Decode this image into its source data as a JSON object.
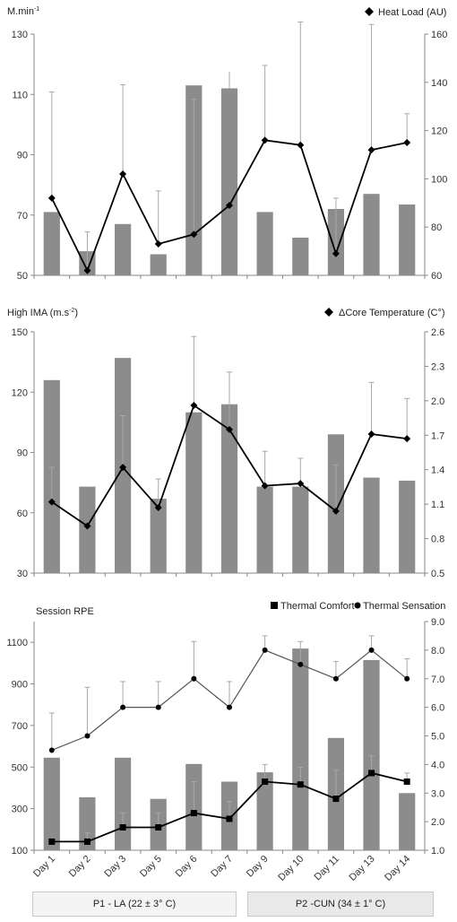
{
  "chart_data": [
    {
      "type": "bar+line",
      "ylabel": "M.min",
      "ylabel_sup": "-1",
      "y2label": "Heat Load (AU)",
      "ylim": [
        50,
        130
      ],
      "yticks": [
        50,
        70,
        90,
        110,
        130
      ],
      "y2lim": [
        60,
        160
      ],
      "y2ticks": [
        60,
        80,
        100,
        120,
        140,
        160
      ],
      "categories": [
        "Day 1",
        "Day 2",
        "Day 3",
        "Day 5",
        "Day 6",
        "Day 7",
        "Day 9",
        "Day 10",
        "Day 11",
        "Day 13",
        "Day 14"
      ],
      "series": [
        {
          "kind": "bar",
          "axis": "left",
          "values": [
            71,
            58,
            67,
            57,
            113,
            112,
            71,
            62.5,
            72,
            77,
            73.5
          ],
          "error": [
            0,
            0,
            0,
            0,
            0,
            5.5,
            0,
            0,
            0,
            0,
            0
          ]
        },
        {
          "kind": "line",
          "axis": "right",
          "marker": "diamond",
          "name": "Heat Load (AU)",
          "values": [
            92,
            62,
            102,
            73,
            77,
            89,
            116,
            114,
            69,
            112,
            115
          ],
          "error": [
            44,
            16,
            37,
            22,
            56,
            0,
            31,
            51,
            23,
            52,
            12
          ]
        }
      ]
    },
    {
      "type": "bar+line",
      "ylabel": "High IMA (m.s",
      "ylabel_sup": "-2",
      "ylabel_end": ")",
      "y2label": "ΔCore Temperature (C°)",
      "ylim": [
        30,
        150
      ],
      "yticks": [
        30,
        60,
        90,
        120,
        150
      ],
      "y2lim": [
        0.5,
        2.6
      ],
      "y2ticks": [
        "0.5",
        "0.8",
        "1.1",
        "1.4",
        "1.7",
        "2.0",
        "2.3",
        "2.6"
      ],
      "categories": [
        "Day 1",
        "Day 2",
        "Day 3",
        "Day 5",
        "Day 6",
        "Day 7",
        "Day 9",
        "Day 10",
        "Day 11",
        "Day 13",
        "Day 14"
      ],
      "series": [
        {
          "kind": "bar",
          "axis": "left",
          "values": [
            126,
            73,
            137,
            67,
            110,
            114,
            73,
            73,
            99,
            77.5,
            76
          ],
          "error": [
            0,
            0,
            0,
            0,
            0,
            0,
            0,
            0,
            0,
            0,
            0
          ]
        },
        {
          "kind": "line",
          "axis": "right",
          "marker": "diamond",
          "name": "ΔCore Temperature (C°)",
          "values": [
            1.12,
            0.91,
            1.42,
            1.07,
            1.96,
            1.75,
            1.26,
            1.28,
            1.04,
            1.71,
            1.67
          ],
          "error": [
            0.3,
            0,
            0.45,
            0.25,
            0.6,
            0.5,
            0.3,
            0.22,
            0.4,
            0.45,
            0.35
          ]
        }
      ]
    },
    {
      "type": "bar+line",
      "ylabel": "Session RPE",
      "ylim": [
        100,
        1200
      ],
      "yticks": [
        100,
        300,
        500,
        700,
        900,
        1100
      ],
      "y2lim": [
        1.0,
        9.0
      ],
      "y2ticks": [
        "1.0",
        "2.0",
        "3.0",
        "4.0",
        "5.0",
        "6.0",
        "7.0",
        "8.0",
        "9.0"
      ],
      "categories": [
        "Day 1",
        "Day 2",
        "Day 3",
        "Day 5",
        "Day 6",
        "Day 7",
        "Day 9",
        "Day 10",
        "Day 11",
        "Day 13",
        "Day 14"
      ],
      "series": [
        {
          "kind": "bar",
          "axis": "left",
          "values": [
            545,
            355,
            545,
            347,
            515,
            430,
            475,
            1070,
            640,
            1015,
            375
          ],
          "error": [
            0,
            0,
            0,
            0,
            0,
            0,
            0,
            0,
            0,
            0,
            0
          ]
        },
        {
          "kind": "line",
          "axis": "right",
          "marker": "square",
          "name": "Thermal Comfort",
          "values": [
            1.3,
            1.3,
            1.8,
            1.8,
            2.3,
            2.1,
            3.4,
            3.3,
            2.8,
            3.7,
            3.4
          ],
          "error": [
            0,
            0.3,
            0.5,
            0.5,
            1.1,
            0.6,
            0.6,
            0.6,
            1.0,
            0.6,
            0.3
          ]
        },
        {
          "kind": "line",
          "axis": "right",
          "marker": "circle",
          "name": "Thermal Sensation",
          "values": [
            4.5,
            5.0,
            6.0,
            6.0,
            7.0,
            6.0,
            8.0,
            7.5,
            7.0,
            8.0,
            7.0
          ],
          "error": [
            1.3,
            1.7,
            0.9,
            0.9,
            1.3,
            0.9,
            0.5,
            0.8,
            0.6,
            0.5,
            0.7
          ]
        }
      ]
    }
  ],
  "periods": [
    {
      "label": "P1 - LA (22 ± 3° C)"
    },
    {
      "label": "P2 -CUN (34 ± 1° C)"
    }
  ],
  "colors": {
    "bar": "#8c8c8c",
    "line": "#000000",
    "error": "#a8a8a8",
    "axis": "#888888"
  }
}
